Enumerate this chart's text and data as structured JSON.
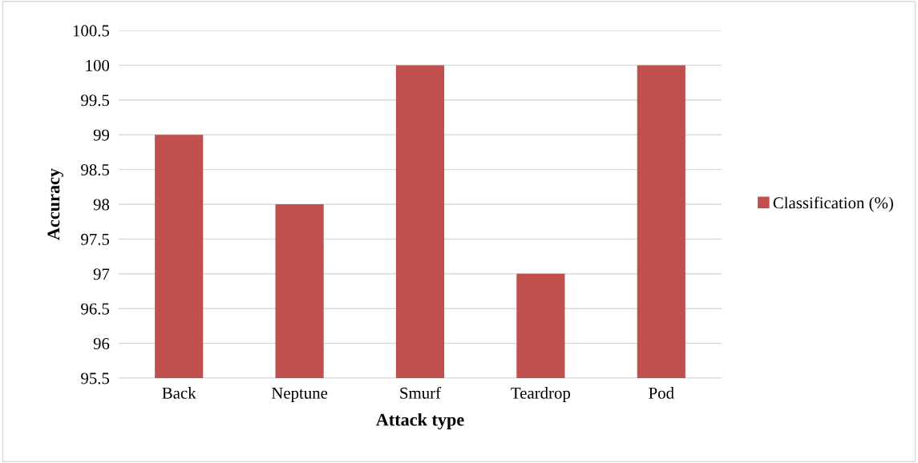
{
  "chart_data": {
    "type": "bar",
    "xlabel": "Attack type",
    "ylabel": "Accuracy",
    "categories": [
      "Back",
      "Neptune",
      "Smurf",
      "Teardrop",
      "Pod"
    ],
    "series": [
      {
        "name": "Classification (%)",
        "color": "#c0504d",
        "values": [
          99,
          98,
          100,
          97,
          100
        ]
      }
    ],
    "ylim": [
      95.5,
      100.5
    ],
    "yticks": [
      95.5,
      96,
      96.5,
      97,
      97.5,
      98,
      98.5,
      99,
      99.5,
      100,
      100.5
    ],
    "grid": "y",
    "legend": "right"
  }
}
